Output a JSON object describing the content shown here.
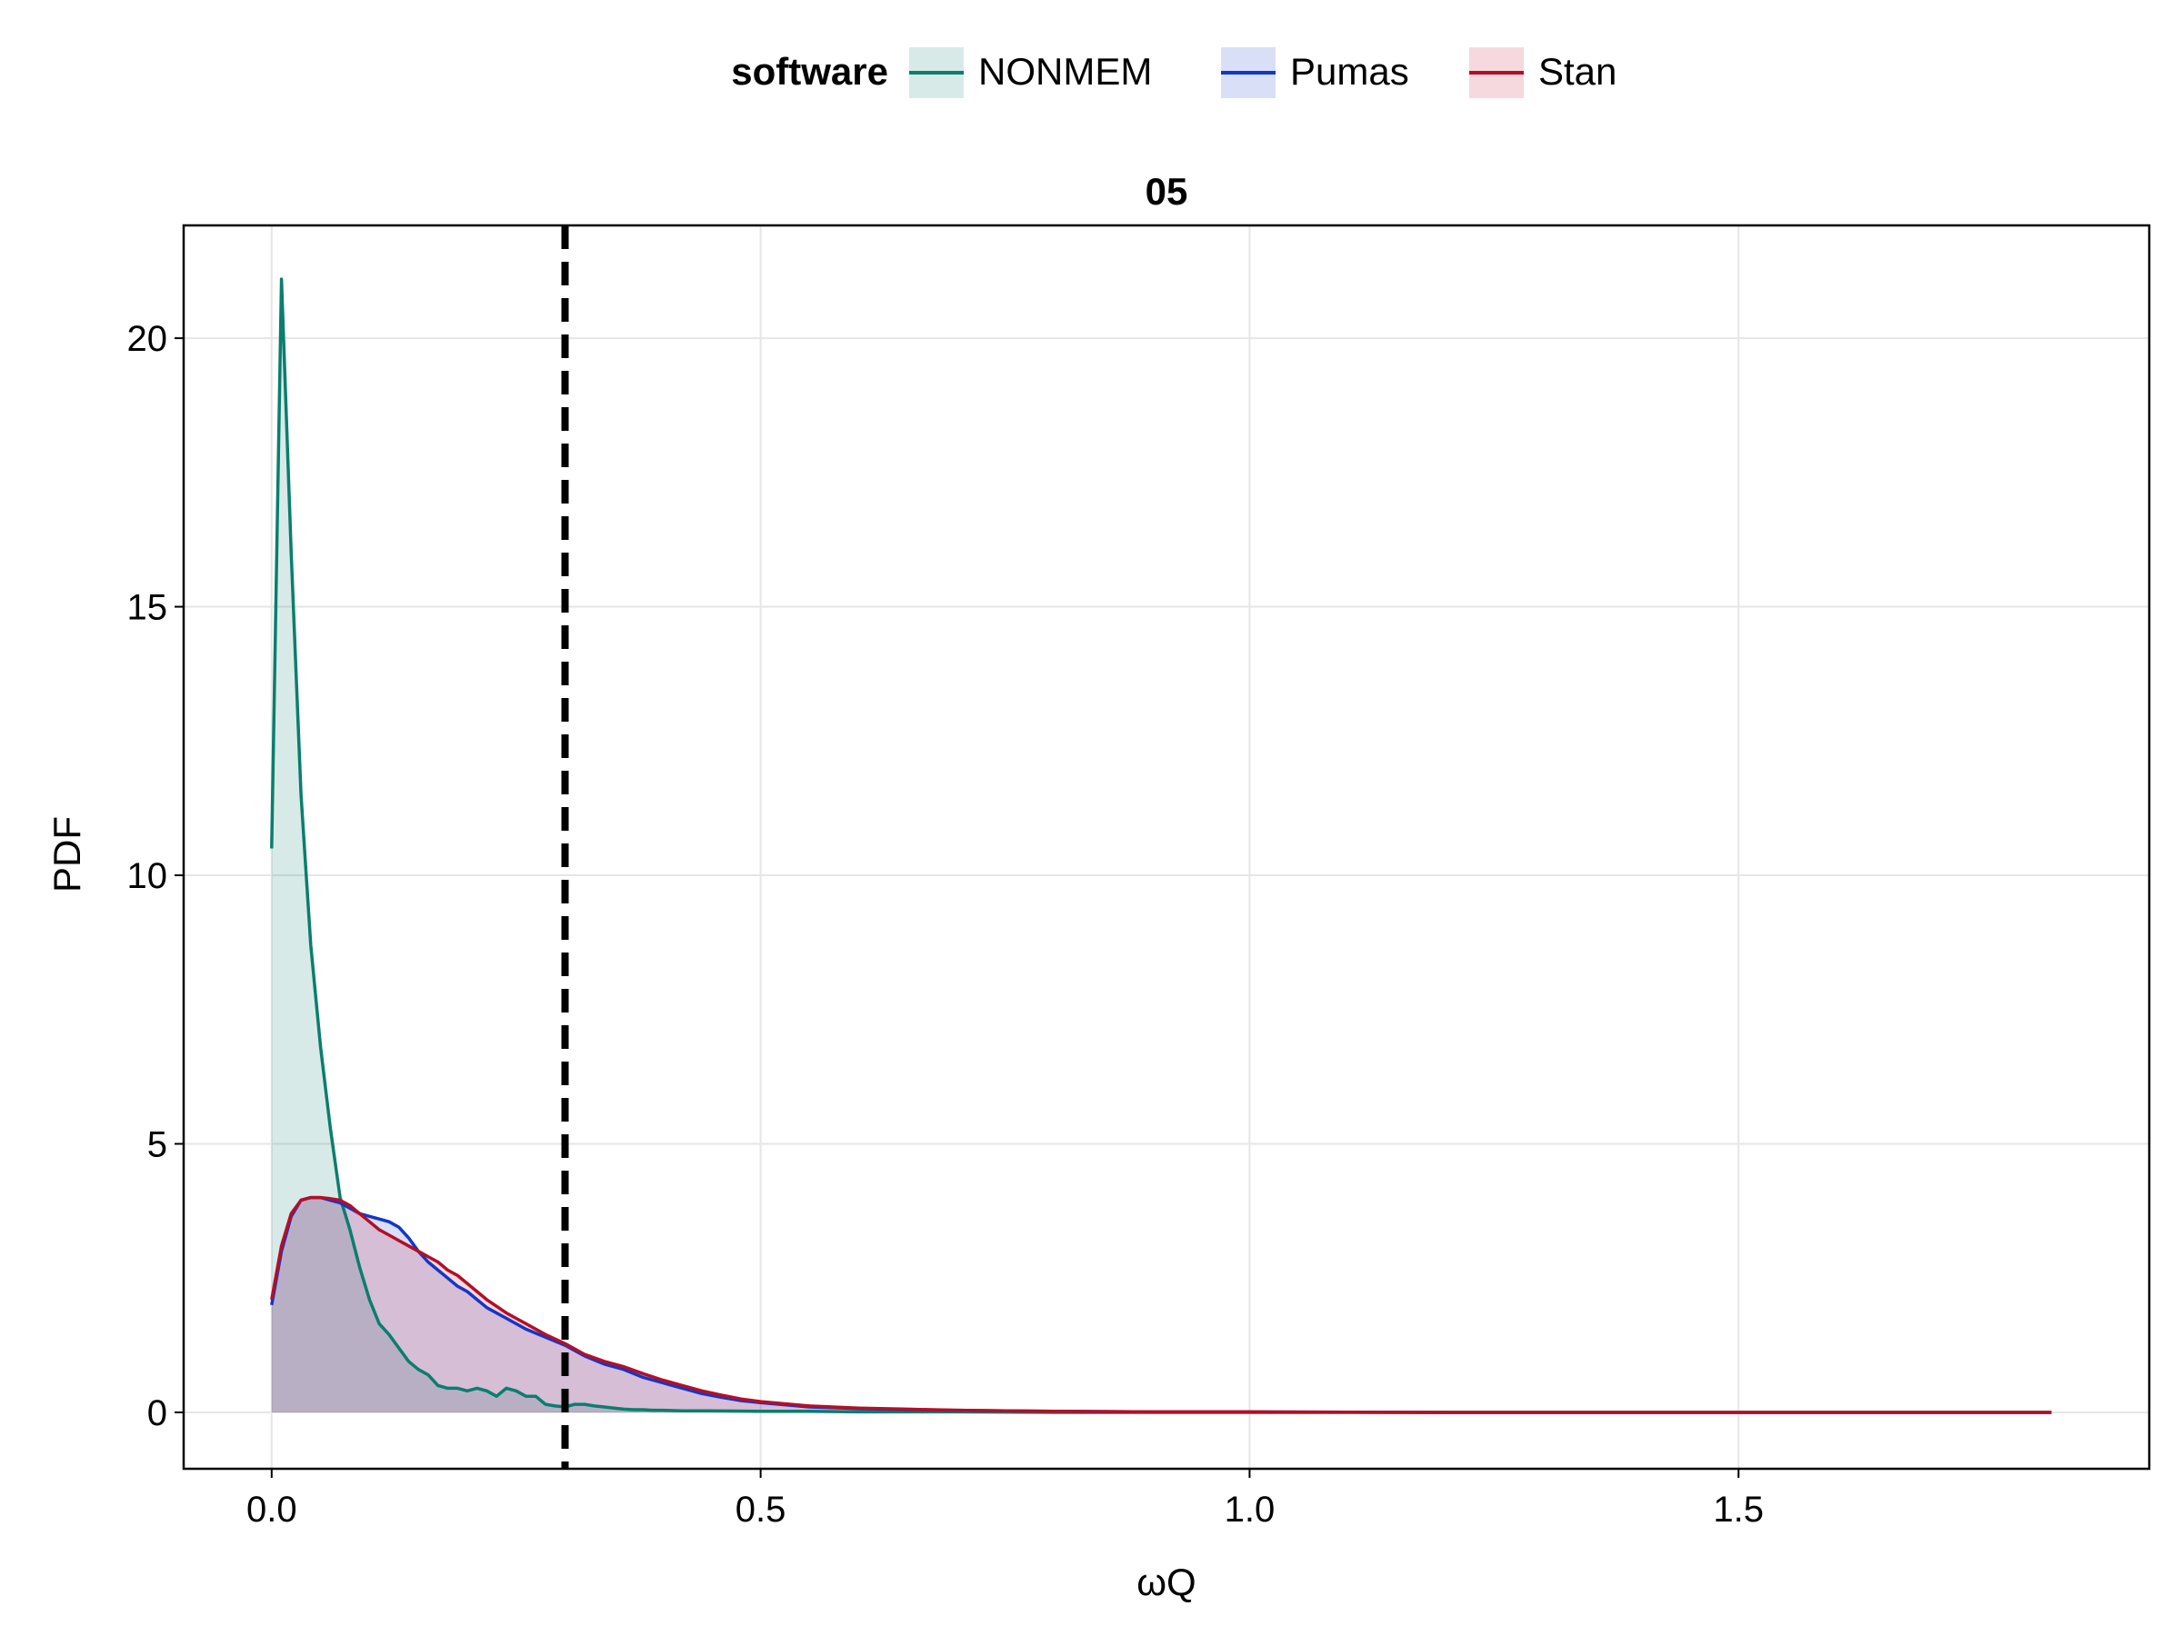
{
  "chart_data": {
    "type": "area",
    "title": "05",
    "xlabel": "ωQ",
    "ylabel": "PDF",
    "xlim": [
      -0.09,
      1.92
    ],
    "ylim": [
      -1.05,
      22.1
    ],
    "xticks": [
      0.0,
      0.5,
      1.0,
      1.5
    ],
    "xtick_labels": [
      "0.0",
      "0.5",
      "1.0",
      "1.5"
    ],
    "yticks": [
      0,
      5,
      10,
      15,
      20
    ],
    "ytick_labels": [
      "0",
      "5",
      "10",
      "15",
      "20"
    ],
    "grid": true,
    "legend": {
      "title": "software",
      "placement": "top-center",
      "entries": [
        "NONMEM",
        "Pumas",
        "Stan"
      ]
    },
    "reference_line": {
      "x": 0.3,
      "style": "dashed",
      "color": "#000000"
    },
    "series": [
      {
        "name": "NONMEM",
        "color": "#0a7e6e",
        "fill": "#0a7e6e",
        "fill_opacity": 0.16,
        "x": [
          0.0,
          0.01,
          0.02,
          0.03,
          0.04,
          0.05,
          0.06,
          0.07,
          0.08,
          0.09,
          0.1,
          0.11,
          0.12,
          0.13,
          0.14,
          0.15,
          0.16,
          0.17,
          0.18,
          0.19,
          0.2,
          0.21,
          0.22,
          0.23,
          0.24,
          0.25,
          0.26,
          0.27,
          0.28,
          0.29,
          0.3,
          0.31,
          0.32,
          0.33,
          0.34,
          0.35,
          0.36,
          0.37,
          0.38,
          0.39,
          0.4,
          0.42,
          0.45,
          0.5,
          0.55,
          0.6,
          0.7,
          0.8,
          1.0,
          1.2,
          1.5,
          1.82
        ],
        "y": [
          10.5,
          21.1,
          16.0,
          11.5,
          8.7,
          6.8,
          5.3,
          4.0,
          3.4,
          2.7,
          2.1,
          1.65,
          1.45,
          1.2,
          0.95,
          0.8,
          0.7,
          0.5,
          0.45,
          0.45,
          0.4,
          0.45,
          0.4,
          0.3,
          0.45,
          0.4,
          0.3,
          0.3,
          0.15,
          0.12,
          0.1,
          0.15,
          0.15,
          0.12,
          0.1,
          0.08,
          0.06,
          0.05,
          0.05,
          0.04,
          0.04,
          0.03,
          0.03,
          0.02,
          0.02,
          0.01,
          0.01,
          0.0,
          0.0,
          0.0,
          0.0,
          0.0
        ]
      },
      {
        "name": "Pumas",
        "color": "#1436c8",
        "fill": "#1436c8",
        "fill_opacity": 0.16,
        "x": [
          0.0,
          0.01,
          0.02,
          0.03,
          0.04,
          0.05,
          0.06,
          0.07,
          0.08,
          0.09,
          0.1,
          0.11,
          0.12,
          0.13,
          0.14,
          0.15,
          0.16,
          0.17,
          0.18,
          0.19,
          0.2,
          0.22,
          0.24,
          0.26,
          0.28,
          0.3,
          0.32,
          0.34,
          0.36,
          0.38,
          0.4,
          0.42,
          0.44,
          0.46,
          0.48,
          0.5,
          0.55,
          0.6,
          0.65,
          0.7,
          0.75,
          0.8,
          0.9,
          1.0,
          1.2,
          1.4,
          1.6,
          1.82
        ],
        "y": [
          2.0,
          3.0,
          3.65,
          3.95,
          4.0,
          4.0,
          3.95,
          3.9,
          3.8,
          3.7,
          3.65,
          3.6,
          3.55,
          3.45,
          3.25,
          3.0,
          2.8,
          2.65,
          2.5,
          2.35,
          2.25,
          1.95,
          1.75,
          1.55,
          1.4,
          1.25,
          1.05,
          0.9,
          0.8,
          0.65,
          0.55,
          0.45,
          0.35,
          0.28,
          0.22,
          0.18,
          0.1,
          0.07,
          0.05,
          0.04,
          0.03,
          0.02,
          0.01,
          0.01,
          0.0,
          0.0,
          0.0,
          0.0
        ]
      },
      {
        "name": "Stan",
        "color": "#b40f26",
        "fill": "#c21432",
        "fill_opacity": 0.16,
        "x": [
          0.0,
          0.01,
          0.02,
          0.03,
          0.04,
          0.05,
          0.06,
          0.07,
          0.08,
          0.09,
          0.1,
          0.11,
          0.12,
          0.13,
          0.14,
          0.15,
          0.16,
          0.17,
          0.18,
          0.19,
          0.2,
          0.22,
          0.24,
          0.26,
          0.28,
          0.3,
          0.32,
          0.34,
          0.36,
          0.38,
          0.4,
          0.42,
          0.44,
          0.46,
          0.48,
          0.5,
          0.55,
          0.6,
          0.65,
          0.7,
          0.75,
          0.8,
          0.9,
          1.0,
          1.2,
          1.4,
          1.6,
          1.82
        ],
        "y": [
          2.1,
          3.1,
          3.7,
          3.95,
          4.0,
          4.0,
          3.98,
          3.95,
          3.85,
          3.7,
          3.55,
          3.4,
          3.3,
          3.2,
          3.1,
          3.0,
          2.9,
          2.8,
          2.65,
          2.55,
          2.4,
          2.1,
          1.85,
          1.65,
          1.45,
          1.28,
          1.08,
          0.95,
          0.85,
          0.72,
          0.6,
          0.5,
          0.4,
          0.32,
          0.25,
          0.2,
          0.12,
          0.08,
          0.06,
          0.04,
          0.03,
          0.02,
          0.01,
          0.01,
          0.0,
          0.0,
          0.0,
          0.0
        ]
      }
    ]
  }
}
